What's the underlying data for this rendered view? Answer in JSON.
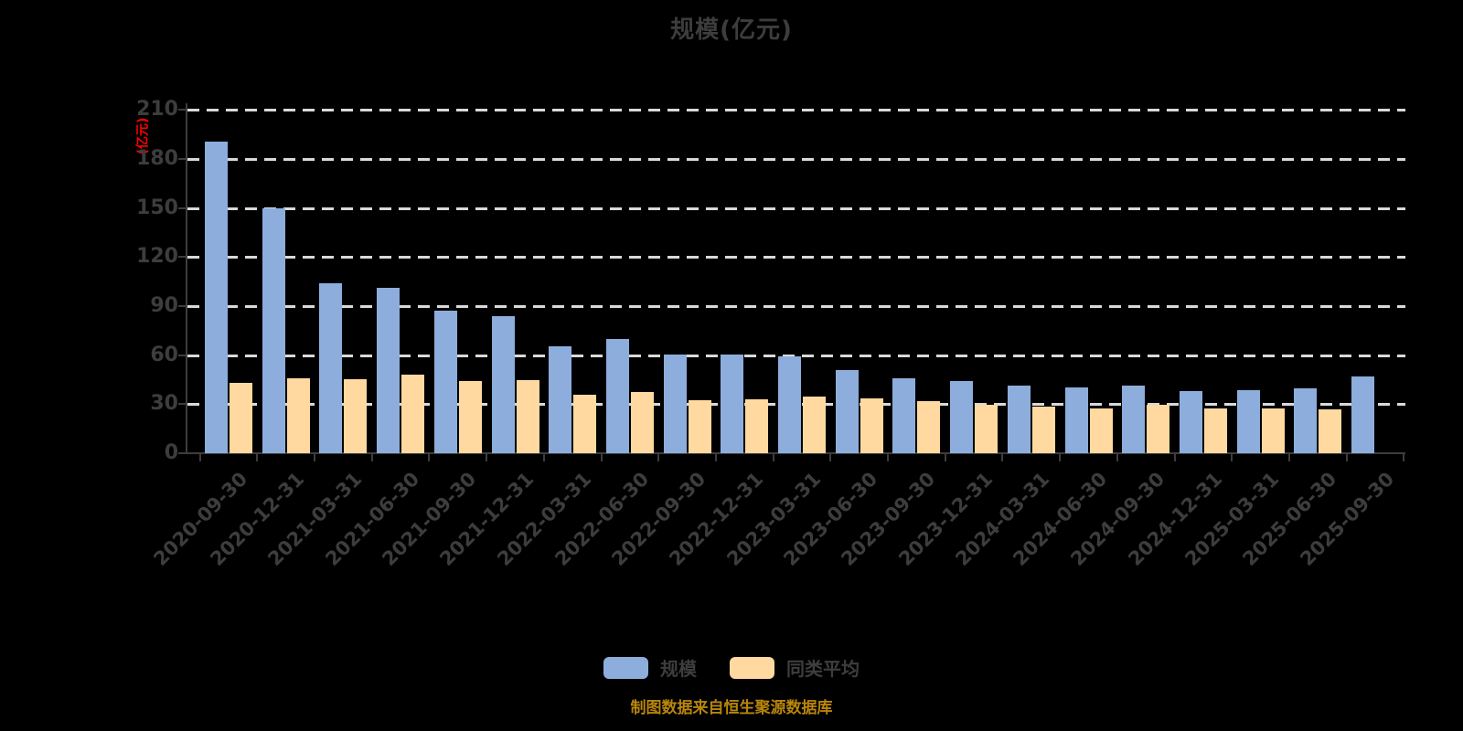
{
  "title": "规模(亿元)",
  "y_axis": {
    "unit_label": "(亿元)",
    "unit_color": "#ff0000",
    "tick_labels": [
      "0",
      "30",
      "60",
      "90",
      "120",
      "150",
      "180",
      "210"
    ]
  },
  "legend": [
    {
      "key": "scale",
      "label": "规模",
      "color": "#8DAEDC"
    },
    {
      "key": "peer-average",
      "label": "同类平均",
      "color": "#FFD9A0"
    }
  ],
  "footer": {
    "source_note": "制图数据来自恒生聚源数据库",
    "color": "#B8860B"
  },
  "colors": {
    "background": "#000000",
    "text": "#3D3D3D",
    "grid": "#D9D9D9",
    "axis": "#3D3D3D"
  },
  "chart_data": {
    "type": "bar",
    "title": "规模(亿元)",
    "ylabel": "(亿元)",
    "ylim": [
      0,
      210
    ],
    "ytick_interval": 30,
    "grid": "horizontal-dashed",
    "legend_position": "bottom",
    "categories": [
      "2020-09-30",
      "2020-12-31",
      "2021-03-31",
      "2021-06-30",
      "2021-09-30",
      "2021-12-31",
      "2022-03-31",
      "2022-06-30",
      "2022-09-30",
      "2022-12-31",
      "2023-03-31",
      "2023-06-30",
      "2023-09-30",
      "2023-12-31",
      "2024-03-31",
      "2024-06-30",
      "2024-09-30",
      "2024-12-31",
      "2025-03-31",
      "2025-06-30",
      "2025-09-30"
    ],
    "series": [
      {
        "name": "规模",
        "color": "#8DAEDC",
        "values": [
          190.5,
          149.8,
          103.8,
          101.3,
          87.0,
          83.8,
          65.5,
          69.6,
          60.1,
          60.3,
          59.0,
          50.7,
          45.6,
          44.4,
          41.4,
          40.5,
          41.1,
          38.1,
          38.5,
          39.4,
          46.8
        ]
      },
      {
        "name": "同类平均",
        "color": "#FFD9A0",
        "values": [
          42.8,
          45.6,
          45.2,
          47.8,
          43.9,
          44.8,
          35.8,
          37.3,
          32.6,
          33.1,
          34.5,
          33.3,
          31.9,
          29.6,
          28.5,
          27.2,
          29.8,
          27.6,
          27.3,
          26.6,
          null
        ]
      }
    ]
  }
}
